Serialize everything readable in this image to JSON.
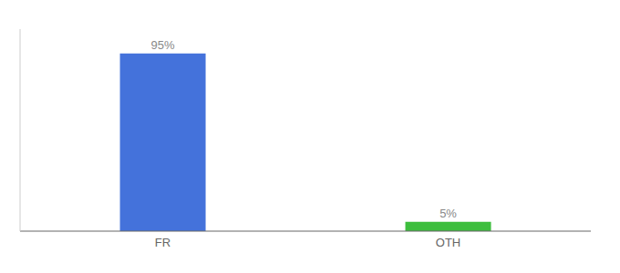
{
  "chart_data": {
    "type": "bar",
    "categories": [
      "FR",
      "OTH"
    ],
    "values": [
      95,
      5
    ],
    "value_labels": [
      "95%",
      "5%"
    ],
    "colors": [
      "#4472db",
      "#3dbe3d"
    ],
    "ylim": [
      0,
      108
    ],
    "data_labels": true,
    "tick_labels": "x",
    "grid": false
  }
}
